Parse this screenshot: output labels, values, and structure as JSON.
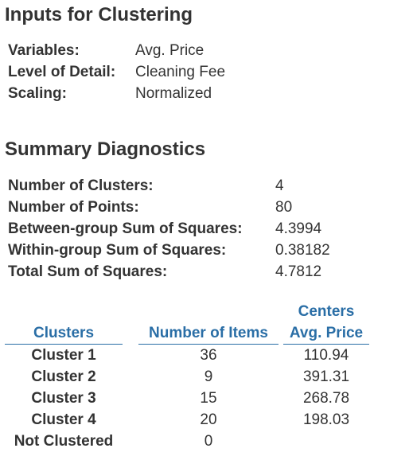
{
  "inputs": {
    "title": "Inputs for Clustering",
    "rows": [
      {
        "label": "Variables:",
        "value": "Avg. Price"
      },
      {
        "label": "Level of Detail:",
        "value": "Cleaning Fee"
      },
      {
        "label": "Scaling:",
        "value": "Normalized"
      }
    ]
  },
  "summary": {
    "title": "Summary Diagnostics",
    "rows": [
      {
        "label": "Number of Clusters:",
        "value": "4"
      },
      {
        "label": "Number of Points:",
        "value": "80"
      },
      {
        "label": "Between-group Sum of Squares:",
        "value": "4.3994"
      },
      {
        "label": "Within-group Sum of Squares:",
        "value": "0.38182"
      },
      {
        "label": "Total Sum of Squares:",
        "value": "4.7812"
      }
    ]
  },
  "clusters": {
    "group_header": "Centers",
    "headers": {
      "name": "Clusters",
      "items": "Number of Items",
      "center": "Avg. Price"
    },
    "rows": [
      {
        "name": "Cluster 1",
        "items": "36",
        "center": "110.94"
      },
      {
        "name": "Cluster 2",
        "items": "9",
        "center": "391.31"
      },
      {
        "name": "Cluster 3",
        "items": "15",
        "center": "268.78"
      },
      {
        "name": "Cluster 4",
        "items": "20",
        "center": "198.03"
      },
      {
        "name": "Not Clustered",
        "items": "0",
        "center": ""
      }
    ]
  }
}
